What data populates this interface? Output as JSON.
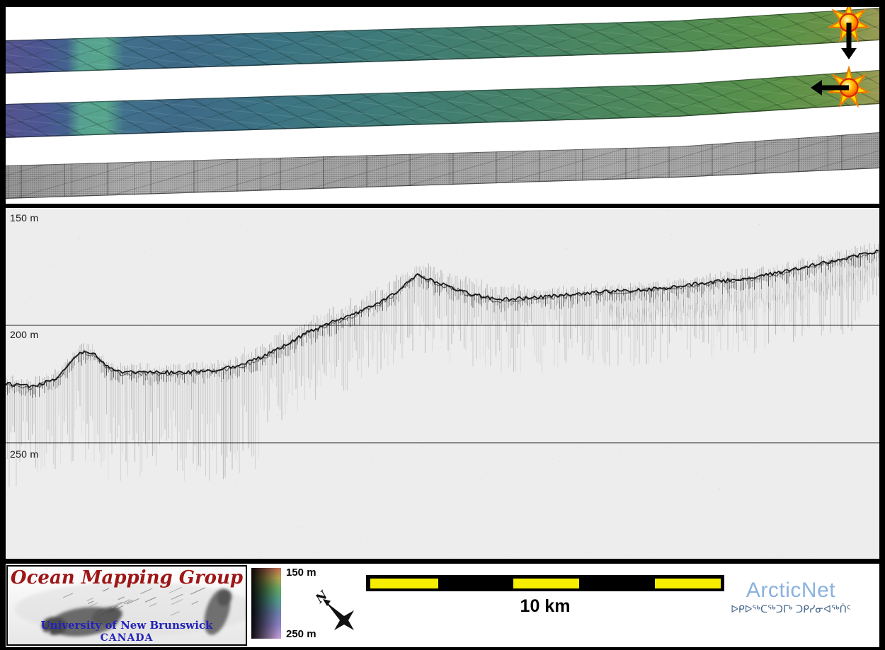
{
  "chart_data": {
    "type": "line",
    "description": "Sub-bottom acoustic echogram profile beneath two sun-illuminated multibeam bathymetry swaths and a backscatter swath",
    "y_tick_labels": [
      "150 m",
      "200 m",
      "250 m"
    ],
    "depth_gridlines_m": [
      150,
      200,
      250
    ],
    "y_inverted": true,
    "ylim_m": [
      150,
      299
    ],
    "x_range_km": [
      0,
      24.6
    ],
    "scale_bar_km": 10,
    "x_km": [
      0,
      0.8,
      1.5,
      1.9,
      2.2,
      2.5,
      2.8,
      3.2,
      4.0,
      5.0,
      5.9,
      6.6,
      7.3,
      7.9,
      8.5,
      9.1,
      9.7,
      10.3,
      10.8,
      11.3,
      11.6,
      12.0,
      12.6,
      13.2,
      13.9,
      14.6,
      15.4,
      16.2,
      17.0,
      17.8,
      18.6,
      19.4,
      20.2,
      21.0,
      21.8,
      22.4,
      23.0,
      23.6,
      24.2,
      24.6
    ],
    "depth_m": [
      225,
      226,
      222,
      214,
      211,
      212,
      217,
      220,
      220,
      220,
      219,
      217,
      213,
      208,
      203,
      199,
      196,
      192,
      188,
      182,
      178,
      181,
      184,
      187,
      189,
      188.5,
      187.5,
      186.5,
      185.5,
      185,
      184,
      182.5,
      181,
      179.5,
      177.5,
      175.5,
      173.5,
      171.5,
      169.5,
      168.5
    ],
    "swath_colorbar": {
      "min_depth_m": 150,
      "max_depth_m": 250
    }
  },
  "swath_panel": {
    "sun_down_name": "sun-illumination-down",
    "sun_left_name": "sun-illumination-left"
  },
  "echogram": {
    "depth_labels": [
      "150 m",
      "200 m",
      "250 m"
    ]
  },
  "footer": {
    "omg": {
      "title": "Ocean Mapping Group",
      "university": "University of New Brunswick",
      "country": "CANADA"
    },
    "colorbar": {
      "top_label": "150 m",
      "bottom_label": "250 m"
    },
    "north_label": "N",
    "scale_label": "10 km",
    "arcticnet": {
      "name": "ArcticNet",
      "inuktitut": "ᐅᑭᐅᖅᑕᖅᑐᒥᒃ ᑐᑭᓯᓂᐊᖅᑏᑦ"
    }
  },
  "colors": {
    "frame": "#000000",
    "echo_bg": "#ededed",
    "accent_yellow": "#f6ee00",
    "omg_red": "#9e1616",
    "unb_blue": "#2222bb",
    "arcticnet_blue": "#8ab2de",
    "inuktitut_blue": "#47688c",
    "bathy_deep": "#54548e",
    "bathy_shallow": "#9a9b54"
  }
}
